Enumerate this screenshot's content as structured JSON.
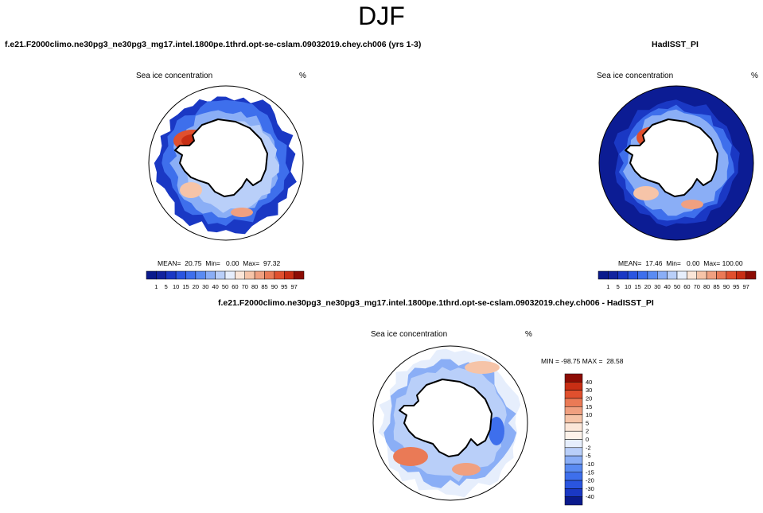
{
  "title": "DJF",
  "panels": {
    "test": {
      "case_name": "f.e21.F2000climo.ne30pg3_ne30pg3_mg17.intel.1800pe.1thrd.opt-se-cslam.09032019.chey.ch006 (yrs 1-3)",
      "variable": "Sea ice concentration",
      "units": "%",
      "stats": "MEAN=  20.75  Min=   0.00  Max=  97.32"
    },
    "obs": {
      "case_name": "HadISST_PI",
      "variable": "Sea ice concentration",
      "units": "%",
      "stats": "MEAN=  17.46  Min=   0.00  Max= 100.00"
    },
    "diff": {
      "case_name": "f.e21.F2000climo.ne30pg3_ne30pg3_mg17.intel.1800pe.1thrd.opt-se-cslam.09032019.chey.ch006 - HadISST_PI",
      "variable": "Sea ice concentration",
      "units": "%",
      "stats": "MIN = -98.75 MAX =  28.58"
    }
  },
  "chart_data": [
    {
      "type": "heatmap",
      "name": "test-polar-map",
      "projection": "south-polar-stereographic",
      "colorbar": {
        "orientation": "horizontal",
        "levels": [
          "1",
          "5",
          "10",
          "15",
          "20",
          "30",
          "40",
          "50",
          "60",
          "70",
          "80",
          "85",
          "90",
          "95",
          "97"
        ],
        "colors": [
          "#0a1a8c",
          "#12239e",
          "#1a38c4",
          "#2a55e0",
          "#3e6fec",
          "#5a8bf2",
          "#8aaef6",
          "#b9cff9",
          "#e6eefc",
          "#fbe6d8",
          "#f6c4a8",
          "#f0a080",
          "#ea7a56",
          "#e0502e",
          "#c82e14",
          "#8c0c04"
        ]
      },
      "mean": 20.75,
      "min": 0.0,
      "max": 97.32
    },
    {
      "type": "heatmap",
      "name": "obs-polar-map",
      "projection": "south-polar-stereographic",
      "colorbar": {
        "orientation": "horizontal",
        "levels": [
          "1",
          "5",
          "10",
          "15",
          "20",
          "30",
          "40",
          "50",
          "60",
          "70",
          "80",
          "85",
          "90",
          "95",
          "97"
        ],
        "colors": [
          "#0a1a8c",
          "#12239e",
          "#1a38c4",
          "#2a55e0",
          "#3e6fec",
          "#5a8bf2",
          "#8aaef6",
          "#b9cff9",
          "#e6eefc",
          "#fbe6d8",
          "#f6c4a8",
          "#f0a080",
          "#ea7a56",
          "#e0502e",
          "#c82e14",
          "#8c0c04"
        ]
      },
      "mean": 17.46,
      "min": 0.0,
      "max": 100.0
    },
    {
      "type": "heatmap",
      "name": "diff-polar-map",
      "projection": "south-polar-stereographic",
      "colorbar": {
        "orientation": "vertical",
        "levels": [
          "40",
          "30",
          "20",
          "15",
          "10",
          "5",
          "2",
          "0",
          "-2",
          "-5",
          "-10",
          "-15",
          "-20",
          "-30",
          "-40"
        ],
        "colors": [
          "#8c0c04",
          "#c82e14",
          "#e0502e",
          "#ea7a56",
          "#f0a080",
          "#f6c4a8",
          "#fbe6d8",
          "#fdf2ea",
          "#e6eefc",
          "#b9cff9",
          "#8aaef6",
          "#5a8bf2",
          "#3e6fec",
          "#2a55e0",
          "#1a38c4",
          "#0a1a8c"
        ]
      },
      "min": -98.75,
      "max": 28.58
    }
  ]
}
